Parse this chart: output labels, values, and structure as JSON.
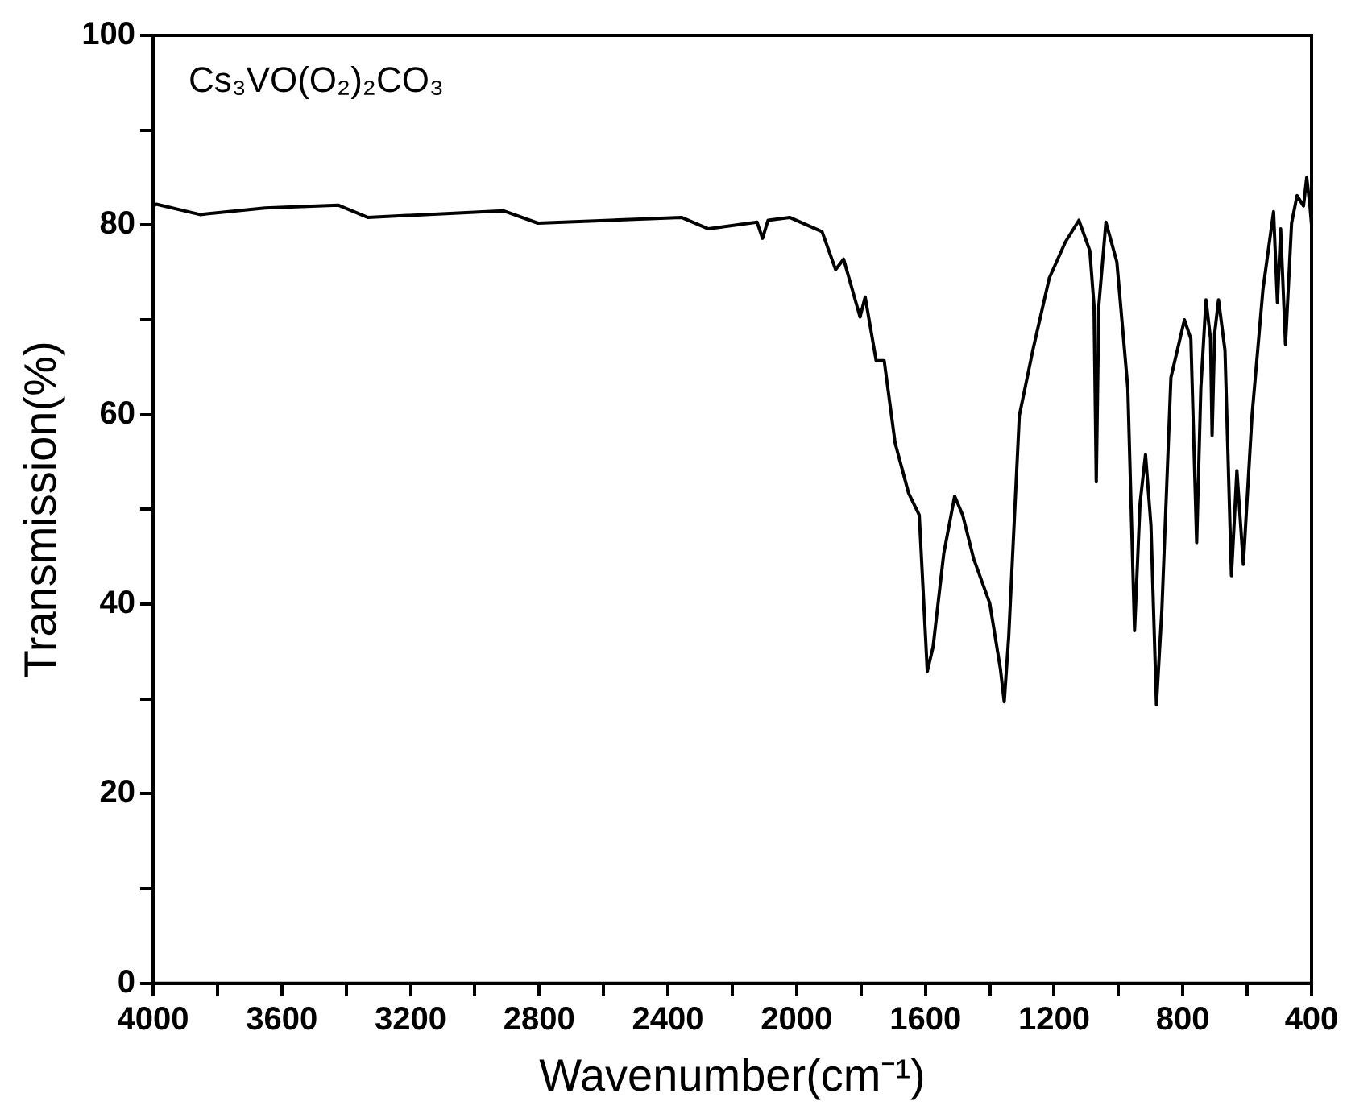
{
  "chart_data": {
    "type": "line",
    "xlabel": "Wavenumber(cm⁻¹)",
    "ylabel": "Transmission(%)",
    "annotations": [
      "Cs₃VO(O₂)₂CO₃"
    ],
    "x": [
      4000,
      3990,
      3854,
      3652,
      3425,
      3333,
      2912,
      2804,
      2358,
      2274,
      2123,
      2106,
      2089,
      2022,
      1921,
      1879,
      1854,
      1803,
      1787,
      1753,
      1728,
      1694,
      1652,
      1619,
      1594,
      1576,
      1543,
      1509,
      1484,
      1450,
      1400,
      1367,
      1355,
      1341,
      1308,
      1266,
      1215,
      1165,
      1123,
      1089,
      1076,
      1069,
      1061,
      1039,
      1005,
      971,
      950,
      933,
      916,
      899,
      882,
      865,
      837,
      795,
      775,
      757,
      744,
      728,
      714,
      709,
      701,
      689,
      669,
      649,
      632,
      612,
      585,
      551,
      518,
      506,
      496,
      481,
      462,
      445,
      425,
      415,
      405,
      400
    ],
    "series": [
      {
        "color": "#000000",
        "values": [
          82,
          82.2,
          81.1,
          81.8,
          82.1,
          80.8,
          81.5,
          80.2,
          80.8,
          79.6,
          80.3,
          78.6,
          80.5,
          80.8,
          79.3,
          75.3,
          76.4,
          70.3,
          72.4,
          65.7,
          65.7,
          57,
          51.7,
          49.4,
          32.9,
          35.5,
          45.3,
          51.4,
          49.4,
          44.8,
          40.1,
          33.2,
          29.7,
          36.6,
          59.9,
          66.8,
          74.4,
          78.2,
          80.5,
          77.3,
          71.5,
          52.9,
          71.5,
          80.3,
          76.1,
          62.8,
          37.2,
          50.6,
          55.8,
          48.3,
          29.4,
          39.5,
          63.9,
          70,
          68,
          46.5,
          62.8,
          72.1,
          68,
          57.8,
          68.6,
          72.1,
          66.8,
          43,
          54.1,
          44.2,
          59.9,
          73.2,
          81.4,
          71.8,
          79.6,
          67.4,
          80.2,
          83.1,
          82,
          85,
          82,
          80
        ]
      }
    ],
    "xlim": [
      4000,
      400
    ],
    "ylim": [
      0,
      100
    ],
    "xticks": [
      4000,
      {
        "value": 3800,
        "label": null
      },
      3600,
      {
        "value": 3400,
        "label": null
      },
      3200,
      {
        "value": 3000,
        "label": null
      },
      2800,
      {
        "value": 2600,
        "label": null
      },
      2400,
      {
        "value": 2200,
        "label": null
      },
      2000,
      {
        "value": 1800,
        "label": null
      },
      1600,
      {
        "value": 1400,
        "label": null
      },
      1200,
      {
        "value": 1000,
        "label": null
      },
      800,
      {
        "value": 600,
        "label": null
      },
      400
    ],
    "yticks": [
      0,
      {
        "value": 10,
        "label": null
      },
      20,
      {
        "value": 30,
        "label": null
      },
      40,
      {
        "value": 50,
        "label": null
      },
      60,
      {
        "value": 70,
        "label": null
      },
      80,
      {
        "value": 90,
        "label": null
      },
      100
    ],
    "grid": false,
    "legend": false,
    "marker": "none",
    "line_style": "solid"
  }
}
